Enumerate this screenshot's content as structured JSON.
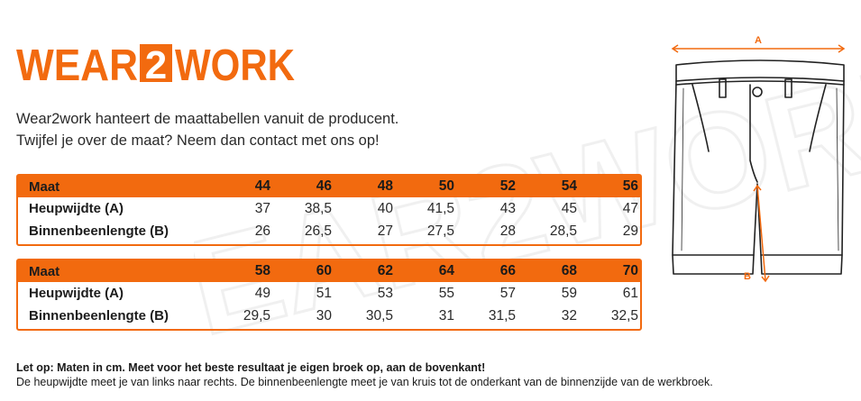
{
  "logo": {
    "part1": "WEAR",
    "part2": "2",
    "part3": "WORK",
    "color": "#f26a0f"
  },
  "watermark": {
    "text": "WEAR2WORK"
  },
  "intro": {
    "line1": "Wear2work hanteert de maattabellen vanuit de producent.",
    "line2": "Twijfel je over de maat? Neem dan contact met ons op!"
  },
  "tables": [
    {
      "header_label": "Maat",
      "sizes": [
        "44",
        "46",
        "48",
        "50",
        "52",
        "54",
        "56"
      ],
      "rows": [
        {
          "label": "Heupwijdte (A)",
          "values": [
            "37",
            "38,5",
            "40",
            "41,5",
            "43",
            "45",
            "47"
          ]
        },
        {
          "label": "Binnenbeenlengte (B)",
          "values": [
            "26",
            "26,5",
            "27",
            "27,5",
            "28",
            "28,5",
            "29"
          ]
        }
      ]
    },
    {
      "header_label": "Maat",
      "sizes": [
        "58",
        "60",
        "62",
        "64",
        "66",
        "68",
        "70"
      ],
      "rows": [
        {
          "label": "Heupwijdte (A)",
          "values": [
            "49",
            "51",
            "53",
            "55",
            "57",
            "59",
            "61"
          ]
        },
        {
          "label": "Binnenbeenlengte (B)",
          "values": [
            "29,5",
            "30",
            "30,5",
            "31",
            "31,5",
            "32",
            "32,5"
          ]
        }
      ]
    }
  ],
  "diagram": {
    "label_a": "A",
    "label_b": "B",
    "accent_color": "#f26a0f"
  },
  "notes": {
    "bold_line": "Let op: Maten in cm. Meet voor het beste resultaat je eigen broek op, aan de bovenkant!",
    "line2": "De heupwijdte meet je van links naar rechts. De binnenbeenlengte meet je van kruis tot de onderkant van de binnenzijde van de werkbroek."
  }
}
